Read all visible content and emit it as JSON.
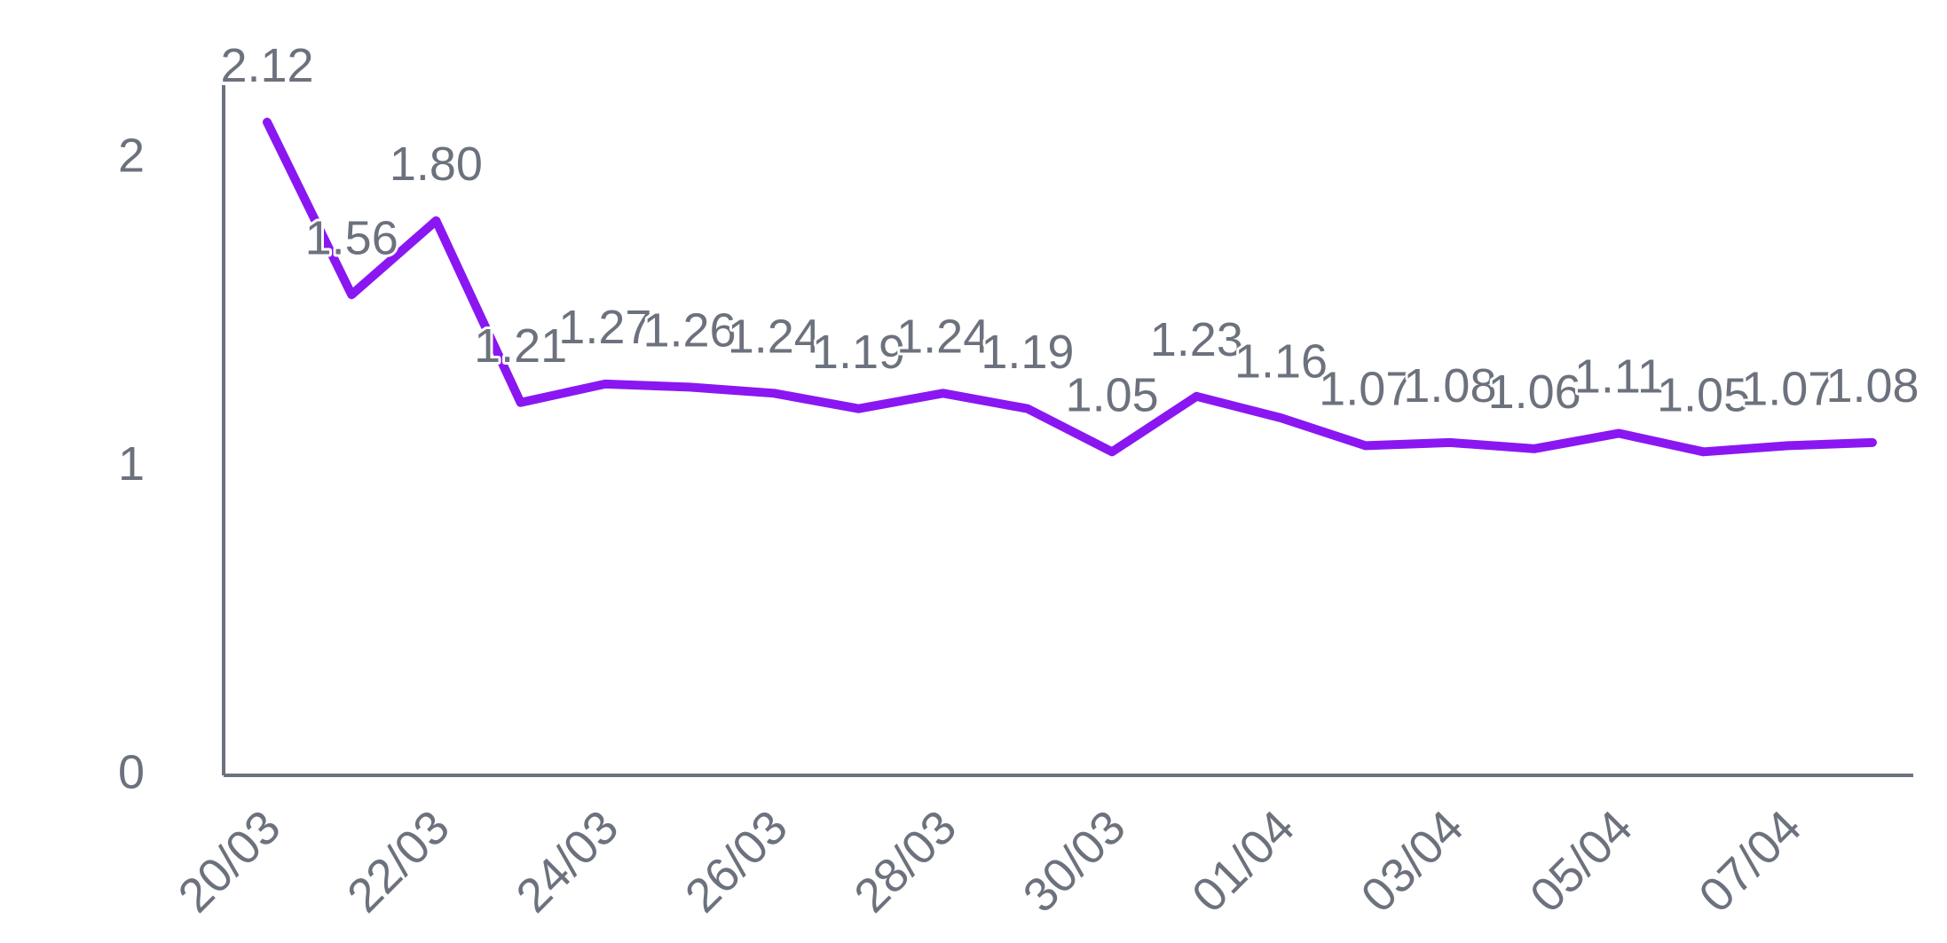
{
  "chart_data": {
    "type": "line",
    "categories": [
      "20/03",
      null,
      "22/03",
      null,
      "24/03",
      null,
      "26/03",
      null,
      "28/03",
      null,
      "30/03",
      null,
      "01/04",
      null,
      "03/04",
      null,
      "05/04",
      null,
      "07/04",
      null
    ],
    "series": [
      {
        "color": "#8a17f2",
        "values": [
          2.12,
          1.56,
          1.8,
          1.21,
          1.27,
          1.26,
          1.24,
          1.19,
          1.24,
          1.19,
          1.05,
          1.23,
          1.16,
          1.07,
          1.08,
          1.06,
          1.11,
          1.05,
          1.07,
          1.08
        ],
        "value_labels": [
          "2.12",
          "1.56",
          "1.80",
          "1.21",
          "1.27",
          "1.26",
          "1.24",
          "1.19",
          "1.24",
          "1.19",
          "1.05",
          "1.23",
          "1.16",
          "1.07",
          "1.08",
          "1.06",
          "1.11",
          "1.05",
          "1.07",
          "1.08"
        ]
      }
    ],
    "ylim": [
      0,
      2.24
    ],
    "yticks": [
      0,
      1,
      2
    ],
    "grid": false
  }
}
